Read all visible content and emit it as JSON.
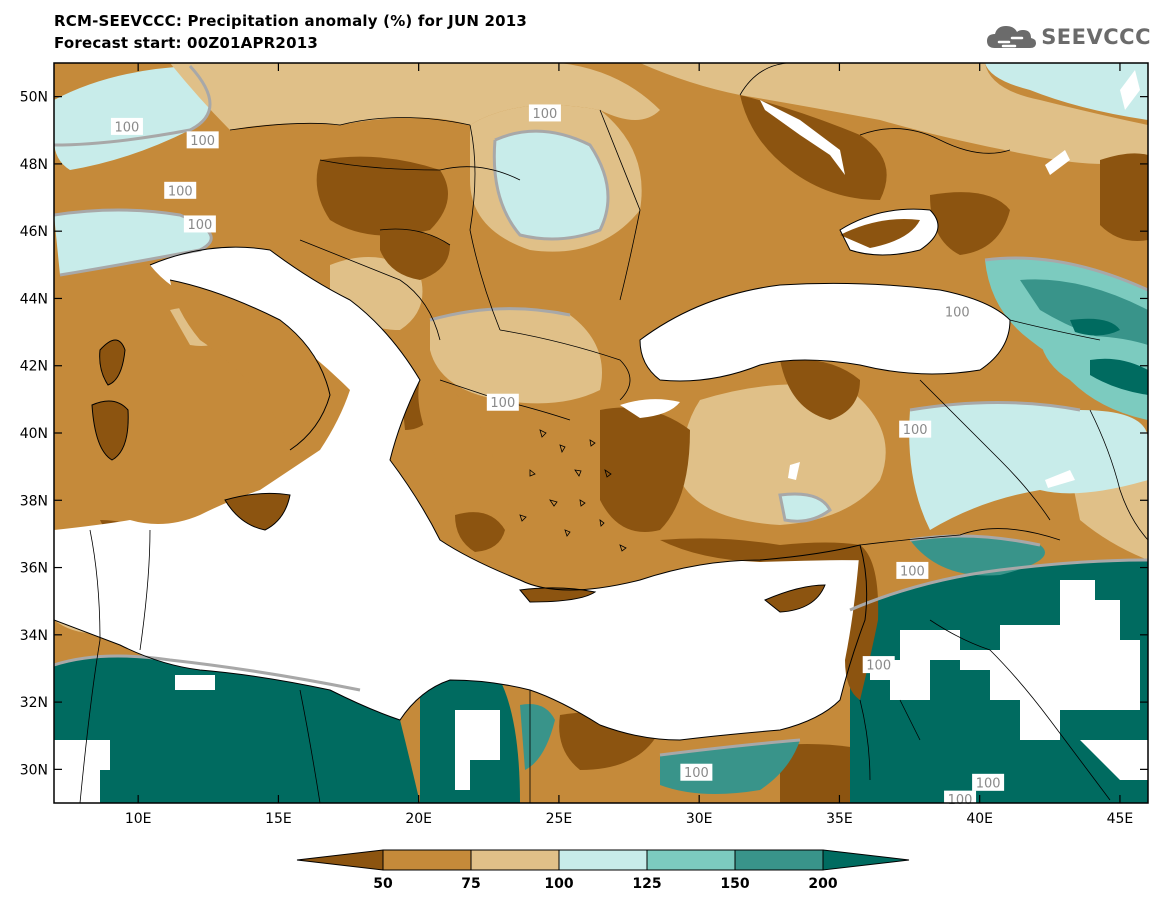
{
  "header": {
    "title": "RCM-SEEVCCC: Precipitation anomaly (%) for JUN 2013",
    "subtitle": "Forecast start: 00Z01APR2013"
  },
  "logo": {
    "text": "SEEVCCC",
    "icon": "cloud-icon"
  },
  "map": {
    "lon_range": [
      7,
      46
    ],
    "lat_range": [
      29,
      51
    ],
    "lon_ticks": [
      {
        "lon": 10,
        "label": "10E"
      },
      {
        "lon": 15,
        "label": "15E"
      },
      {
        "lon": 20,
        "label": "20E"
      },
      {
        "lon": 25,
        "label": "25E"
      },
      {
        "lon": 30,
        "label": "30E"
      },
      {
        "lon": 35,
        "label": "35E"
      },
      {
        "lon": 40,
        "label": "40E"
      },
      {
        "lon": 45,
        "label": "45E"
      }
    ],
    "lat_ticks": [
      {
        "lat": 50,
        "label": "50N"
      },
      {
        "lat": 48,
        "label": "48N"
      },
      {
        "lat": 46,
        "label": "46N"
      },
      {
        "lat": 44,
        "label": "44N"
      },
      {
        "lat": 42,
        "label": "42N"
      },
      {
        "lat": 40,
        "label": "40N"
      },
      {
        "lat": 38,
        "label": "38N"
      },
      {
        "lat": 36,
        "label": "36N"
      },
      {
        "lat": 34,
        "label": "34N"
      },
      {
        "lat": 32,
        "label": "32N"
      },
      {
        "lat": 30,
        "label": "30N"
      }
    ],
    "contour_labels": [
      {
        "text": "100",
        "lon": 9.6,
        "lat": 49.1
      },
      {
        "text": "100",
        "lon": 12.3,
        "lat": 48.7
      },
      {
        "text": "100",
        "lon": 11.5,
        "lat": 47.2
      },
      {
        "text": "100",
        "lon": 12.2,
        "lat": 46.2
      },
      {
        "text": "100",
        "lon": 24.5,
        "lat": 49.5
      },
      {
        "text": "100",
        "lon": 39.2,
        "lat": 43.6
      },
      {
        "text": "100",
        "lon": 23.0,
        "lat": 40.9
      },
      {
        "text": "100",
        "lon": 37.7,
        "lat": 40.1
      },
      {
        "text": "100",
        "lon": 37.6,
        "lat": 35.9
      },
      {
        "text": "100",
        "lon": 36.4,
        "lat": 33.1
      },
      {
        "text": "100",
        "lon": 29.9,
        "lat": 29.9
      },
      {
        "text": "100",
        "lon": 40.3,
        "lat": 29.6
      },
      {
        "text": "100",
        "lon": 39.3,
        "lat": 29.1
      }
    ]
  },
  "colorbar": {
    "levels": [
      "50",
      "75",
      "100",
      "125",
      "150",
      "200"
    ],
    "colors": [
      "#8c5410",
      "#c58a3a",
      "#e0c088",
      "#c8ecea",
      "#7ccbbf",
      "#39948a",
      "#006b60"
    ]
  },
  "colors": {
    "land_default": "#c58a3a",
    "sea": "#ffffff",
    "contour_line": "#a8a8a8",
    "logo": "#6b6b6b"
  }
}
